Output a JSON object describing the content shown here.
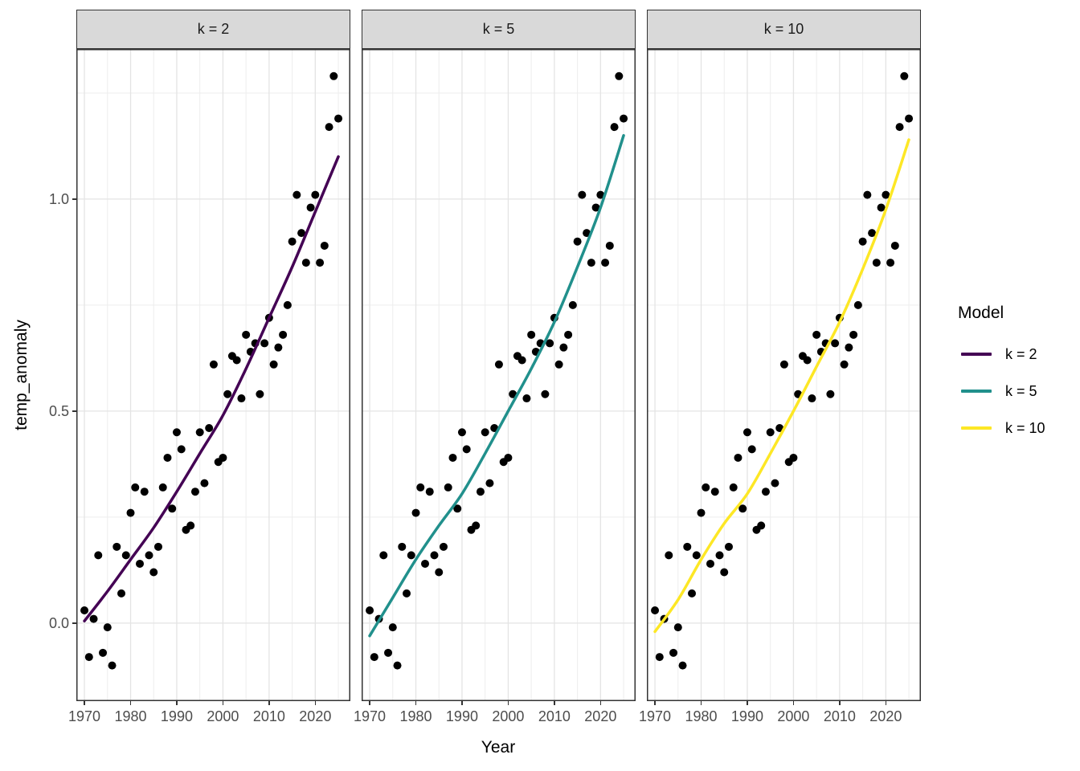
{
  "chart_data": {
    "type": "scatter",
    "subtype": "faceted scatter with smooth trend lines",
    "title": "",
    "xlabel": "Year",
    "ylabel": "temp_anomaly",
    "legend_title": "Model",
    "legend_position": "right",
    "grid": "on",
    "x_domain": [
      1968.25,
      2027.6
    ],
    "y_domain": [
      -0.184,
      1.354
    ],
    "x_ticks": [
      1970,
      1980,
      1990,
      2000,
      2010,
      2020
    ],
    "x_minor": [
      1975,
      1985,
      1995,
      2005,
      2015,
      2025
    ],
    "y_ticks": [
      {
        "label": "0.0",
        "value": 0.0
      },
      {
        "label": "0.5",
        "value": 0.5
      },
      {
        "label": "1.0",
        "value": 1.0
      }
    ],
    "y_minor": [
      0.25,
      0.75,
      1.25
    ],
    "facets": [
      {
        "label": "k = 2",
        "color": "#440154"
      },
      {
        "label": "k = 5",
        "color": "#21908C"
      },
      {
        "label": "k = 10",
        "color": "#FDE725"
      }
    ],
    "points": {
      "x": [
        1970,
        1971,
        1972,
        1973,
        1974,
        1975,
        1976,
        1977,
        1978,
        1979,
        1980,
        1981,
        1982,
        1983,
        1984,
        1985,
        1986,
        1987,
        1988,
        1989,
        1990,
        1991,
        1992,
        1993,
        1994,
        1995,
        1996,
        1997,
        1998,
        1999,
        2000,
        2001,
        2002,
        2003,
        2004,
        2005,
        2006,
        2007,
        2008,
        2009,
        2010,
        2011,
        2012,
        2013,
        2014,
        2015,
        2016,
        2017,
        2018,
        2019,
        2020,
        2021,
        2022,
        2023,
        2024,
        2025
      ],
      "y": [
        0.03,
        -0.08,
        0.01,
        0.16,
        -0.07,
        -0.01,
        -0.1,
        0.18,
        0.07,
        0.16,
        0.26,
        0.32,
        0.14,
        0.31,
        0.16,
        0.12,
        0.18,
        0.32,
        0.39,
        0.27,
        0.45,
        0.41,
        0.22,
        0.23,
        0.31,
        0.45,
        0.33,
        0.46,
        0.61,
        0.38,
        0.39,
        0.54,
        0.63,
        0.62,
        0.53,
        0.68,
        0.64,
        0.66,
        0.54,
        0.66,
        0.72,
        0.61,
        0.65,
        0.68,
        0.75,
        0.9,
        1.01,
        0.92,
        0.85,
        0.98,
        1.01,
        0.85,
        0.89,
        1.17,
        1.29,
        1.19
      ]
    },
    "smooth_curves": [
      {
        "name": "k = 2",
        "color": "#440154",
        "x": [
          1970,
          1975,
          1980,
          1985,
          1990,
          1995,
          2000,
          2005,
          2010,
          2015,
          2020,
          2025
        ],
        "y": [
          0.005,
          0.075,
          0.15,
          0.225,
          0.31,
          0.4,
          0.49,
          0.6,
          0.72,
          0.84,
          0.97,
          1.1
        ]
      },
      {
        "name": "k = 5",
        "color": "#21908C",
        "x": [
          1970,
          1975,
          1980,
          1985,
          1990,
          1995,
          2000,
          2005,
          2010,
          2015,
          2020,
          2025
        ],
        "y": [
          -0.03,
          0.06,
          0.15,
          0.23,
          0.305,
          0.4,
          0.5,
          0.6,
          0.71,
          0.84,
          0.98,
          1.15
        ]
      },
      {
        "name": "k = 10",
        "color": "#FDE725",
        "x": [
          1970,
          1975,
          1980,
          1985,
          1990,
          1995,
          2000,
          2005,
          2010,
          2015,
          2020,
          2025
        ],
        "y": [
          -0.02,
          0.055,
          0.15,
          0.235,
          0.305,
          0.4,
          0.5,
          0.605,
          0.71,
          0.835,
          0.975,
          1.14
        ]
      }
    ],
    "styles": {
      "point_color": "#000000",
      "grid_major_color": "#E4E4E4",
      "grid_minor_color": "#EDEDED",
      "panel_background": "#FFFFFF",
      "panel_border_color": "#333333",
      "strip_fill": "#D9D9D9",
      "tick_color": "#333333",
      "tick_label_color": "#4D4D4D"
    }
  }
}
